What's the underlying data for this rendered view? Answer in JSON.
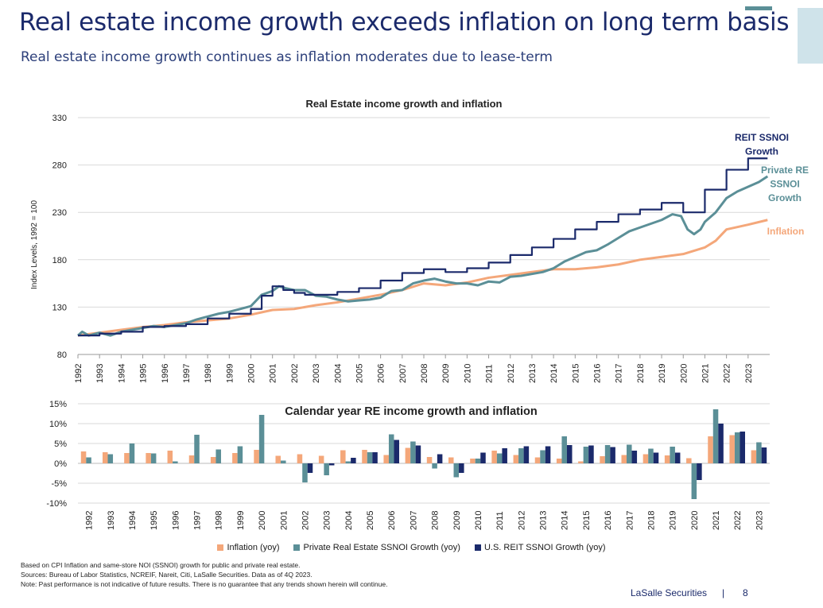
{
  "page": {
    "title": "Real estate income growth exceeds inflation on long term basis",
    "subtitle": "Real estate income growth continues as inflation moderates due to lease-term",
    "footnotes": [
      "Based on CPI Inflation and same-store NOI (SSNOI) growth for public and private real estate.",
      "Sources: Bureau of Labor Statistics, NCREIF, Nareit, Citi, LaSalle Securities. Data as of 4Q 2023.",
      "Note: Past performance is not indicative of future results. There is no guarantee that any trends shown herein will continue."
    ],
    "brand": "LaSalle Securities",
    "separator": "|",
    "page_number": "8"
  },
  "colors": {
    "reit": "#1b2a6b",
    "private": "#5b8f97",
    "inflation": "#f4a77a",
    "grid": "#d9d9d9",
    "title": "#1b2a6b"
  },
  "chart_data": [
    {
      "type": "line",
      "title": "Real Estate income growth and inflation",
      "ylabel": "Index Levels, 1992 = 100",
      "xlabel": "",
      "ylim": [
        80,
        330
      ],
      "yticks": [
        80,
        130,
        180,
        230,
        280,
        330
      ],
      "xlim": [
        1992,
        2024
      ],
      "xticks": [
        "1992",
        "1993",
        "1994",
        "1995",
        "1996",
        "1997",
        "1998",
        "1999",
        "2000",
        "2001",
        "2002",
        "2003",
        "2004",
        "2005",
        "2006",
        "2007",
        "2008",
        "2009",
        "2010",
        "2011",
        "2012",
        "2013",
        "2014",
        "2015",
        "2016",
        "2017",
        "2018",
        "2019",
        "2020",
        "2021",
        "2022",
        "2023"
      ],
      "series": [
        {
          "name": "REIT SSNOI Growth",
          "label_lines": [
            "REIT SSNOI",
            "Growth"
          ],
          "step": true,
          "x": [
            1992,
            1993,
            1994,
            1995,
            1996,
            1997,
            1998,
            1999,
            2000,
            2000.5,
            2001,
            2001.5,
            2002,
            2002.5,
            2003,
            2004,
            2005,
            2006,
            2007,
            2008,
            2009,
            2010,
            2011,
            2012,
            2013,
            2014,
            2015,
            2016,
            2017,
            2018,
            2019,
            2020,
            2021,
            2022,
            2023,
            2023.9
          ],
          "values": [
            100,
            102,
            104,
            109,
            110,
            112,
            118,
            123,
            128,
            142,
            152,
            148,
            145,
            143,
            143,
            146,
            150,
            158,
            166,
            170,
            167,
            171,
            177,
            185,
            193,
            202,
            212,
            220,
            228,
            233,
            240,
            230,
            254,
            275,
            287,
            287
          ]
        },
        {
          "name": "Private RE SSNOI Growth",
          "label_lines": [
            "Private RE",
            "SSNOI",
            "Growth"
          ],
          "x": [
            1992,
            1992.2,
            1992.5,
            1993,
            1993.5,
            1994,
            1994.5,
            1995,
            1995.5,
            1996,
            1996.5,
            1997,
            1997.5,
            1998,
            1998.5,
            1999,
            1999.5,
            2000,
            2000.5,
            2001,
            2001.3,
            2001.6,
            2002,
            2002.5,
            2003,
            2003.5,
            2004,
            2004.5,
            2005,
            2005.5,
            2006,
            2006.5,
            2007,
            2007.5,
            2008,
            2008.5,
            2009,
            2009.5,
            2010,
            2010.5,
            2011,
            2011.5,
            2012,
            2012.5,
            2013,
            2013.5,
            2014,
            2014.5,
            2015,
            2015.5,
            2016,
            2016.5,
            2017,
            2017.5,
            2018,
            2018.5,
            2019,
            2019.5,
            2019.9,
            2020.2,
            2020.5,
            2020.8,
            2021,
            2021.5,
            2022,
            2022.5,
            2023,
            2023.5,
            2023.9
          ],
          "values": [
            100,
            104,
            100,
            103,
            100,
            104,
            106,
            108,
            110,
            109,
            111,
            113,
            117,
            120,
            123,
            125,
            128,
            131,
            143,
            147,
            152,
            150,
            148,
            148,
            142,
            141,
            138,
            136,
            137,
            138,
            140,
            147,
            148,
            155,
            158,
            160,
            157,
            155,
            155,
            153,
            157,
            156,
            162,
            163,
            165,
            167,
            171,
            178,
            183,
            188,
            190,
            196,
            203,
            210,
            214,
            218,
            222,
            228,
            226,
            212,
            207,
            212,
            220,
            230,
            245,
            252,
            257,
            262,
            268
          ]
        },
        {
          "name": "Inflation",
          "label_lines": [
            "Inflation"
          ],
          "x": [
            1992,
            1993,
            1994,
            1995,
            1996,
            1997,
            1998,
            1999,
            2000,
            2001,
            2002,
            2003,
            2004,
            2005,
            2006,
            2007,
            2008,
            2009,
            2010,
            2011,
            2012,
            2013,
            2014,
            2015,
            2016,
            2017,
            2018,
            2019,
            2020,
            2021,
            2021.5,
            2022,
            2023,
            2023.9
          ],
          "values": [
            100,
            103,
            106,
            109,
            111,
            114,
            116,
            118,
            122,
            127,
            128,
            132,
            135,
            139,
            143,
            148,
            155,
            153,
            156,
            161,
            164,
            167,
            170,
            170,
            172,
            175,
            180,
            183,
            186,
            193,
            200,
            212,
            217,
            222
          ]
        }
      ]
    },
    {
      "type": "bar",
      "title": "Calendar year RE income growth and inflation",
      "ylim": [
        -10,
        15
      ],
      "yticks": [
        -10,
        -5,
        0,
        5,
        10,
        15
      ],
      "ytick_labels": [
        "-10%",
        "-5%",
        "0%",
        "5%",
        "10%",
        "15%"
      ],
      "categories": [
        "1992",
        "1993",
        "1994",
        "1995",
        "1996",
        "1997",
        "1998",
        "1999",
        "2000",
        "2001",
        "2002",
        "2003",
        "2004",
        "2005",
        "2006",
        "2007",
        "2008",
        "2009",
        "2010",
        "2011",
        "2012",
        "2013",
        "2014",
        "2015",
        "2016",
        "2017",
        "2018",
        "2019",
        "2020",
        "2021",
        "2022",
        "2023"
      ],
      "series": [
        {
          "name": "Inflation (yoy)",
          "values": [
            3.0,
            2.8,
            2.6,
            2.6,
            3.2,
            2.0,
            1.6,
            2.6,
            3.4,
            1.9,
            2.3,
            1.9,
            3.3,
            3.4,
            2.1,
            3.9,
            1.6,
            1.5,
            1.2,
            3.2,
            2.1,
            1.5,
            1.2,
            0.5,
            1.8,
            2.1,
            2.3,
            2.0,
            1.3,
            6.8,
            7.1,
            3.3
          ]
        },
        {
          "name": "Private Real Estate SSNOI Growth (yoy)",
          "values": [
            1.5,
            2.3,
            5.0,
            2.5,
            0.5,
            7.2,
            3.5,
            4.3,
            12.2,
            0.7,
            -4.8,
            -3.0,
            0.5,
            2.8,
            7.3,
            5.5,
            -1.3,
            -3.5,
            1.2,
            2.5,
            3.8,
            3.3,
            6.8,
            4.2,
            4.6,
            4.7,
            3.7,
            4.2,
            -9.0,
            13.6,
            7.8,
            5.3
          ]
        },
        {
          "name": "U.S. REIT SSNOI Growth (yoy)",
          "values": [
            0,
            0,
            0,
            0,
            0,
            0,
            0,
            0,
            0,
            0,
            -2.4,
            -0.5,
            1.4,
            2.8,
            5.9,
            4.5,
            2.3,
            -2.4,
            2.7,
            3.8,
            4.3,
            4.3,
            4.6,
            4.5,
            4.1,
            3.2,
            2.7,
            2.7,
            -4.2,
            10.0,
            8.0,
            4.0
          ]
        }
      ]
    }
  ]
}
